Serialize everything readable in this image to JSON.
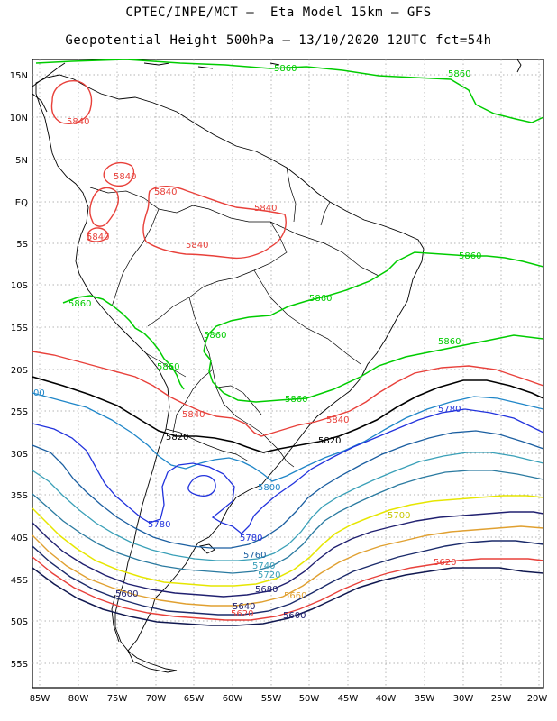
{
  "header": {
    "line1": "CPTEC/INPE/MCT –  Eta Model 15km – GFS",
    "line2": "Geopotential Height 500hPa – 13/10/2020 12UTC fct=54h"
  },
  "axes": {
    "lat_labels": [
      "15N",
      "10N",
      "5N",
      "EQ",
      "5S",
      "10S",
      "15S",
      "20S",
      "25S",
      "30S",
      "35S",
      "40S",
      "45S",
      "50S",
      "55S"
    ],
    "lon_labels": [
      "85W",
      "80W",
      "75W",
      "70W",
      "65W",
      "60W",
      "55W",
      "50W",
      "45W",
      "40W",
      "35W",
      "30W",
      "25W",
      "20W"
    ]
  },
  "contour_labels": [
    {
      "text": "5860",
      "color": "#00cc00"
    },
    {
      "text": "5860",
      "color": "#00cc00"
    },
    {
      "text": "5860",
      "color": "#00cc00"
    },
    {
      "text": "5860",
      "color": "#00cc00"
    },
    {
      "text": "5860",
      "color": "#00cc00"
    },
    {
      "text": "5860",
      "color": "#00cc00"
    },
    {
      "text": "5860",
      "color": "#00cc00"
    },
    {
      "text": "5860",
      "color": "#00cc00"
    },
    {
      "text": "5860",
      "color": "#00cc00"
    },
    {
      "text": "5840",
      "color": "#e8403a"
    },
    {
      "text": "5840",
      "color": "#e8403a"
    },
    {
      "text": "5840",
      "color": "#e8403a"
    },
    {
      "text": "5840",
      "color": "#e8403a"
    },
    {
      "text": "5840",
      "color": "#e8403a"
    },
    {
      "text": "5840",
      "color": "#e8403a"
    },
    {
      "text": "5840",
      "color": "#e8403a"
    },
    {
      "text": "5840",
      "color": "#e8403a"
    },
    {
      "text": "5820",
      "color": "#000000"
    },
    {
      "text": "5820",
      "color": "#000000"
    },
    {
      "text": "5780",
      "color": "#2233dd"
    },
    {
      "text": "5780",
      "color": "#2233dd"
    },
    {
      "text": "5780",
      "color": "#2233dd"
    },
    {
      "text": "5800",
      "color": "#1f86c8"
    },
    {
      "text": "5760",
      "color": "#1a5ea0"
    },
    {
      "text": "5740",
      "color": "#3aa0b8"
    },
    {
      "text": "5720",
      "color": "#3aa0b8"
    },
    {
      "text": "5700",
      "color": "#e6e600"
    },
    {
      "text": "5680",
      "color": "#202070"
    },
    {
      "text": "5660",
      "color": "#e0a030"
    },
    {
      "text": "5640",
      "color": "#202070"
    },
    {
      "text": "5620",
      "color": "#e8403a"
    },
    {
      "text": "5620",
      "color": "#e8403a"
    },
    {
      "text": "5600",
      "color": "#202070"
    },
    {
      "text": "5600",
      "color": "#202070"
    },
    {
      "text": "00",
      "color": "#1f86c8"
    }
  ],
  "colors": {
    "h5860": "#00cc00",
    "h5840": "#e8403a",
    "h5820": "#000000",
    "h5800": "#1f86c8",
    "h5780": "#2233dd",
    "h5760": "#1a5ea0",
    "h5740": "#3aa0b8",
    "h5720": "#2a7aa0",
    "h5700": "#e6e600",
    "h5680": "#e0a030",
    "h5660": "#e8403a",
    "h5640": "#1a2a6a",
    "h5620": "#e8403a",
    "h5600": "#101850",
    "grid": "#999999",
    "coast": "#000000"
  }
}
